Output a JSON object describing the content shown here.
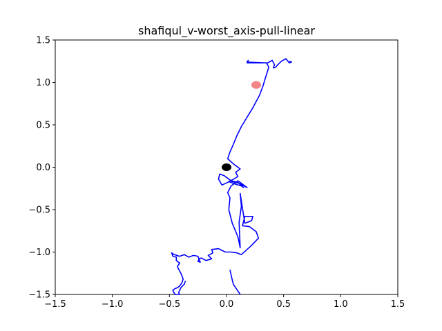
{
  "chart_data": {
    "type": "line",
    "title": "shafiqul_v-worst_axis-pull-linear",
    "xlabel": "",
    "ylabel": "",
    "xlim": [
      -1.5,
      1.5
    ],
    "ylim": [
      -1.5,
      1.5
    ],
    "grid": false,
    "x_ticks": [
      -1.5,
      -1.0,
      -0.5,
      0.0,
      0.5,
      1.0,
      1.5
    ],
    "x_tick_labels": [
      "−1.5",
      "−1.0",
      "−0.5",
      "0.0",
      "0.5",
      "1.0",
      "1.5"
    ],
    "y_ticks": [
      -1.5,
      -1.0,
      -0.5,
      0.0,
      0.5,
      1.0,
      1.5
    ],
    "y_tick_labels": [
      "−1.5",
      "−1.0",
      "−0.5",
      "0.0",
      "0.5",
      "1.0",
      "1.5"
    ],
    "series": [
      {
        "color": "#0000ff",
        "x": [
          0.55,
          0.57,
          0.55,
          0.52,
          0.48,
          0.45,
          0.43,
          0.41,
          0.42,
          0.4,
          0.36,
          0.18,
          0.19,
          0.18,
          0.35,
          0.37,
          0.34,
          0.32,
          0.29,
          0.23,
          0.13,
          0.09,
          0.06,
          0.03,
          0.01,
          0.06,
          0.12,
          0.08,
          0.1,
          0.05,
          0.02,
          0.08,
          0.13,
          0.15,
          0.1,
          0.04,
          -0.04,
          -0.07,
          -0.06,
          -0.02,
          0.05,
          0.11,
          0.18,
          0.1,
          0.04,
          0.01,
          0.03,
          0.02,
          0.05,
          0.1,
          0.12,
          0.11,
          0.13,
          0.12,
          0.16,
          0.22,
          0.23,
          0.16,
          0.14,
          0.2,
          0.26,
          0.28,
          0.27,
          0.22,
          0.13,
          0.09,
          0.04,
          -0.01,
          -0.07,
          -0.13,
          -0.12,
          -0.16,
          -0.13,
          -0.18,
          -0.22,
          -0.24,
          -0.25,
          -0.23,
          -0.25,
          -0.29,
          -0.33,
          -0.37,
          -0.41,
          -0.44,
          -0.43,
          -0.46,
          -0.48,
          -0.47,
          -0.44,
          -0.44,
          -0.41,
          -0.43,
          -0.42,
          -0.4,
          -0.39,
          -0.38,
          -0.39,
          -0.41,
          -0.43,
          -0.45,
          -0.47,
          -0.46,
          -0.45,
          -0.41,
          -0.42,
          -0.4,
          -0.37,
          -0.36
        ],
        "y": [
          1.25,
          1.24,
          1.23,
          1.28,
          1.25,
          1.21,
          1.18,
          1.17,
          1.21,
          1.26,
          1.23,
          1.23,
          1.26,
          1.24,
          1.23,
          1.18,
          1.05,
          0.96,
          0.85,
          0.7,
          0.48,
          0.37,
          0.27,
          0.18,
          0.1,
          0.04,
          -0.02,
          -0.06,
          -0.11,
          -0.15,
          -0.17,
          -0.2,
          -0.22,
          -0.24,
          -0.18,
          -0.16,
          -0.21,
          -0.14,
          -0.08,
          -0.1,
          -0.17,
          -0.19,
          -0.24,
          -0.16,
          -0.22,
          -0.3,
          -0.36,
          -0.5,
          -0.66,
          -0.82,
          -0.95,
          -0.65,
          -0.46,
          -0.31,
          -0.66,
          -0.63,
          -0.58,
          -0.58,
          -0.69,
          -0.7,
          -0.76,
          -0.84,
          -0.85,
          -0.92,
          -1.03,
          -1.01,
          -1.0,
          -1.0,
          -0.96,
          -0.97,
          -1.01,
          -1.04,
          -1.08,
          -1.1,
          -1.07,
          -1.08,
          -1.11,
          -1.12,
          -1.05,
          -1.04,
          -1.06,
          -1.03,
          -1.05,
          -1.04,
          -1.04,
          -1.03,
          -1.01,
          -1.05,
          -1.06,
          -1.1,
          -1.13,
          -1.17,
          -1.2,
          -1.25,
          -1.28,
          -1.32,
          -1.36,
          -1.4,
          -1.42,
          -1.43,
          -1.45,
          -1.48,
          -1.5,
          -1.5,
          -1.48,
          -1.42,
          -1.38,
          -1.34
        ]
      }
    ],
    "markers": [
      {
        "x": 0.0,
        "y": 0.0,
        "color": "#000000"
      },
      {
        "x": 0.26,
        "y": 0.97,
        "color": "#f07070"
      }
    ],
    "trail": {
      "x": [
        0.12,
        0.1,
        0.08,
        0.06,
        0.05,
        0.04,
        0.03
      ],
      "y": [
        -1.5,
        -1.46,
        -1.42,
        -1.38,
        -1.33,
        -1.27,
        -1.21
      ]
    }
  }
}
